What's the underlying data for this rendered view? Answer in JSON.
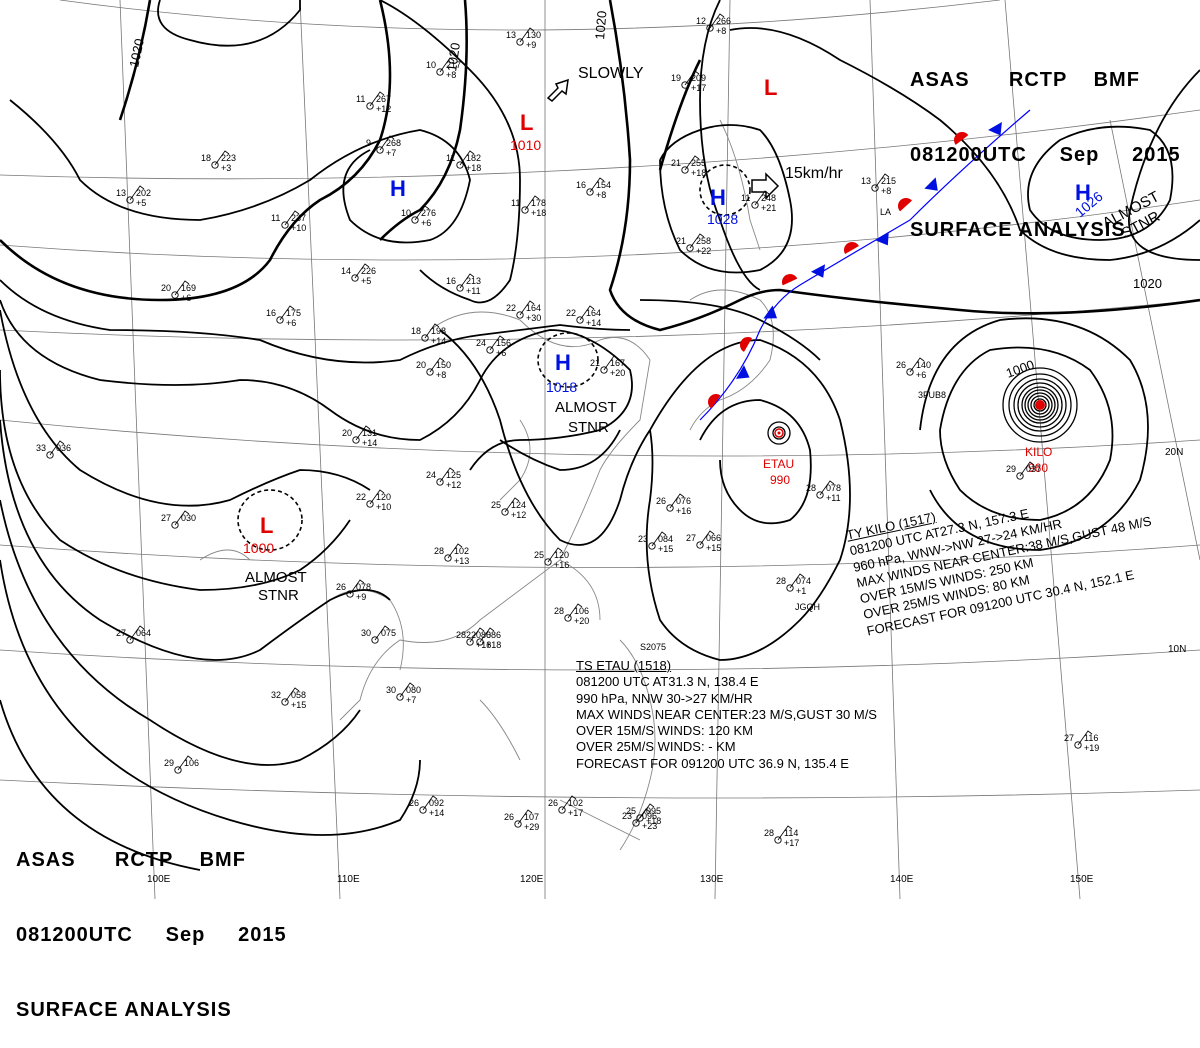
{
  "header_top": {
    "line1": [
      "ASAS",
      "RCTP",
      "BMF"
    ],
    "line2": [
      "081200UTC",
      "Sep",
      "2015"
    ],
    "line3": "SURFACE ANALYSIS"
  },
  "header_bottom": {
    "line1": [
      "ASAS",
      "RCTP",
      "BMF"
    ],
    "line2": [
      "081200UTC",
      "Sep",
      "2015"
    ],
    "line3": "SURFACE ANALYSIS"
  },
  "colors": {
    "low": "#e00000",
    "high": "#0010e0",
    "isobar": "#000000",
    "grid": "#555555"
  },
  "isobar_labels": [
    "1020",
    "1020",
    "1020",
    "1020",
    "1000"
  ],
  "systems": [
    {
      "type": "L",
      "value": "1010"
    },
    {
      "type": "H",
      "value": ""
    },
    {
      "type": "H",
      "value": "1028"
    },
    {
      "type": "L",
      "value": ""
    },
    {
      "type": "H",
      "value": "1026"
    },
    {
      "type": "H",
      "value": "1018"
    },
    {
      "type": "L",
      "value": "1000"
    },
    {
      "type": "L",
      "name": "ETAU",
      "value": "990"
    },
    {
      "type": "L",
      "name": "KILO",
      "value": "960"
    }
  ],
  "movement": {
    "slowly": "SLOWLY",
    "speed": "15km/hr"
  },
  "stnr_labels": [
    [
      "ALMOST",
      "STNR"
    ],
    [
      "ALMOST",
      "STNR"
    ],
    [
      "ALMOST",
      "STNR"
    ],
    [
      "ALMOST",
      "STNR"
    ]
  ],
  "kilo_info": {
    "name": "TY KILO  (1517)",
    "l1": "081200 UTC  AT27.3 N, 157.3 E",
    "l2": "960 hPa, WNW->NW  27->24 KM/HR",
    "l3": "MAX WINDS NEAR CENTER:38 M/S,GUST 48 M/S",
    "l4": "OVER 15M/S WINDS: 250 KM",
    "l5": "OVER 25M/S WINDS: 80 KM",
    "l6": "FORECAST FOR 091200 UTC 30.4 N, 152.1 E"
  },
  "etau_info": {
    "name": "TS  ETAU  (1518)",
    "l1": "081200 UTC  AT31.3 N, 138.4 E",
    "l2": "990 hPa, NNW  30->27 KM/HR",
    "l3": "MAX WINDS NEAR CENTER:23 M/S,GUST 30 M/S",
    "l4": "OVER 15M/S WINDS: 120 KM",
    "l5": "OVER 25M/S WINDS: - KM",
    "l6": "FORECAST FOR 091200 UTC 36.9 N, 135.4 E"
  },
  "lon_labels": [
    "100E",
    "110E",
    "120E",
    "130E",
    "140E",
    "150E"
  ],
  "lat_labels": [
    "20N",
    "10N"
  ],
  "station_plots": [
    {
      "t": "13",
      "p": "130",
      "d": "+9"
    },
    {
      "t": "10",
      "p": "217",
      "d": "+8"
    },
    {
      "t": "11",
      "p": "267",
      "d": "+12"
    },
    {
      "t": "9",
      "p": "268",
      "d": "+7"
    },
    {
      "t": "18",
      "p": "223",
      "d": "+3"
    },
    {
      "t": "13",
      "p": "202",
      "d": "+5"
    },
    {
      "t": "11",
      "p": "237",
      "d": "+10"
    },
    {
      "t": "10",
      "p": "276",
      "d": "+6"
    },
    {
      "t": "11",
      "p": "182",
      "d": "+18"
    },
    {
      "t": "11",
      "p": "178",
      "d": "+18"
    },
    {
      "t": "16",
      "p": "154",
      "d": "+8"
    },
    {
      "t": "14",
      "p": "226",
      "d": "+5"
    },
    {
      "t": "16",
      "p": "213",
      "d": "+11"
    },
    {
      "t": "20",
      "p": "169",
      "d": "+6"
    },
    {
      "t": "16",
      "p": "175",
      "d": "+6"
    },
    {
      "t": "18",
      "p": "198",
      "d": "+14"
    },
    {
      "t": "20",
      "p": "150",
      "d": "+8"
    },
    {
      "t": "24",
      "p": "156",
      "d": "+6"
    },
    {
      "t": "22",
      "p": "164",
      "d": "+30"
    },
    {
      "t": "22",
      "p": "164",
      "d": "+14"
    },
    {
      "t": "20",
      "p": "131",
      "d": "+14"
    },
    {
      "t": "24",
      "p": "125",
      "d": "+12"
    },
    {
      "t": "22",
      "p": "120",
      "d": "+10"
    },
    {
      "t": "25",
      "p": "124",
      "d": "+12"
    },
    {
      "t": "28",
      "p": "102",
      "d": "+13"
    },
    {
      "t": "25",
      "p": "120",
      "d": "+16"
    },
    {
      "t": "28",
      "p": "106",
      "d": "+20"
    },
    {
      "t": "26",
      "p": "078",
      "d": "+9"
    },
    {
      "t": "30",
      "p": "075",
      "d": ""
    },
    {
      "t": "27",
      "p": "030",
      "d": ""
    },
    {
      "t": "27",
      "p": "064",
      "d": ""
    },
    {
      "t": "33",
      "p": "036",
      "d": ""
    },
    {
      "t": "30",
      "p": "080",
      "d": "+7"
    },
    {
      "t": "32",
      "p": "058",
      "d": "+15"
    },
    {
      "t": "29",
      "p": "106",
      "d": ""
    },
    {
      "t": "28",
      "p": "086",
      "d": "+18"
    },
    {
      "t": "26",
      "p": "076",
      "d": "+16"
    },
    {
      "t": "23",
      "p": "084",
      "d": "+15"
    },
    {
      "t": "27",
      "p": "066",
      "d": "+15"
    },
    {
      "t": "28",
      "p": "078",
      "d": "+11"
    },
    {
      "t": "28",
      "p": "074",
      "d": "+1"
    },
    {
      "t": "26",
      "p": "140",
      "d": "+6"
    },
    {
      "t": "29",
      "p": "037",
      "d": ""
    },
    {
      "t": "27",
      "p": "116",
      "d": "+19"
    },
    {
      "t": "26",
      "p": "092",
      "d": "+14"
    },
    {
      "t": "26",
      "p": "107",
      "d": "+29"
    },
    {
      "t": "28",
      "p": "114",
      "d": "+17"
    },
    {
      "t": "26",
      "p": "102",
      "d": "+17"
    },
    {
      "t": "25",
      "p": "095",
      "d": "+18"
    },
    {
      "t": "21",
      "p": "255",
      "d": "+18"
    },
    {
      "t": "21",
      "p": "258",
      "d": "+22"
    },
    {
      "t": "13",
      "p": "215",
      "d": "+8"
    },
    {
      "t": "11",
      "p": "248",
      "d": "+21"
    },
    {
      "t": "19",
      "p": "209",
      "d": "+17"
    },
    {
      "t": "12",
      "p": "266",
      "d": "+8"
    },
    {
      "t": "21",
      "p": "167",
      "d": "+20"
    },
    {
      "t": "23",
      "p": "096",
      "d": "+23"
    },
    {
      "t": "22",
      "p": "086",
      "d": "+18"
    }
  ],
  "station_ids": [
    "LA",
    "JGQH",
    "3FUB8",
    "S2075"
  ]
}
